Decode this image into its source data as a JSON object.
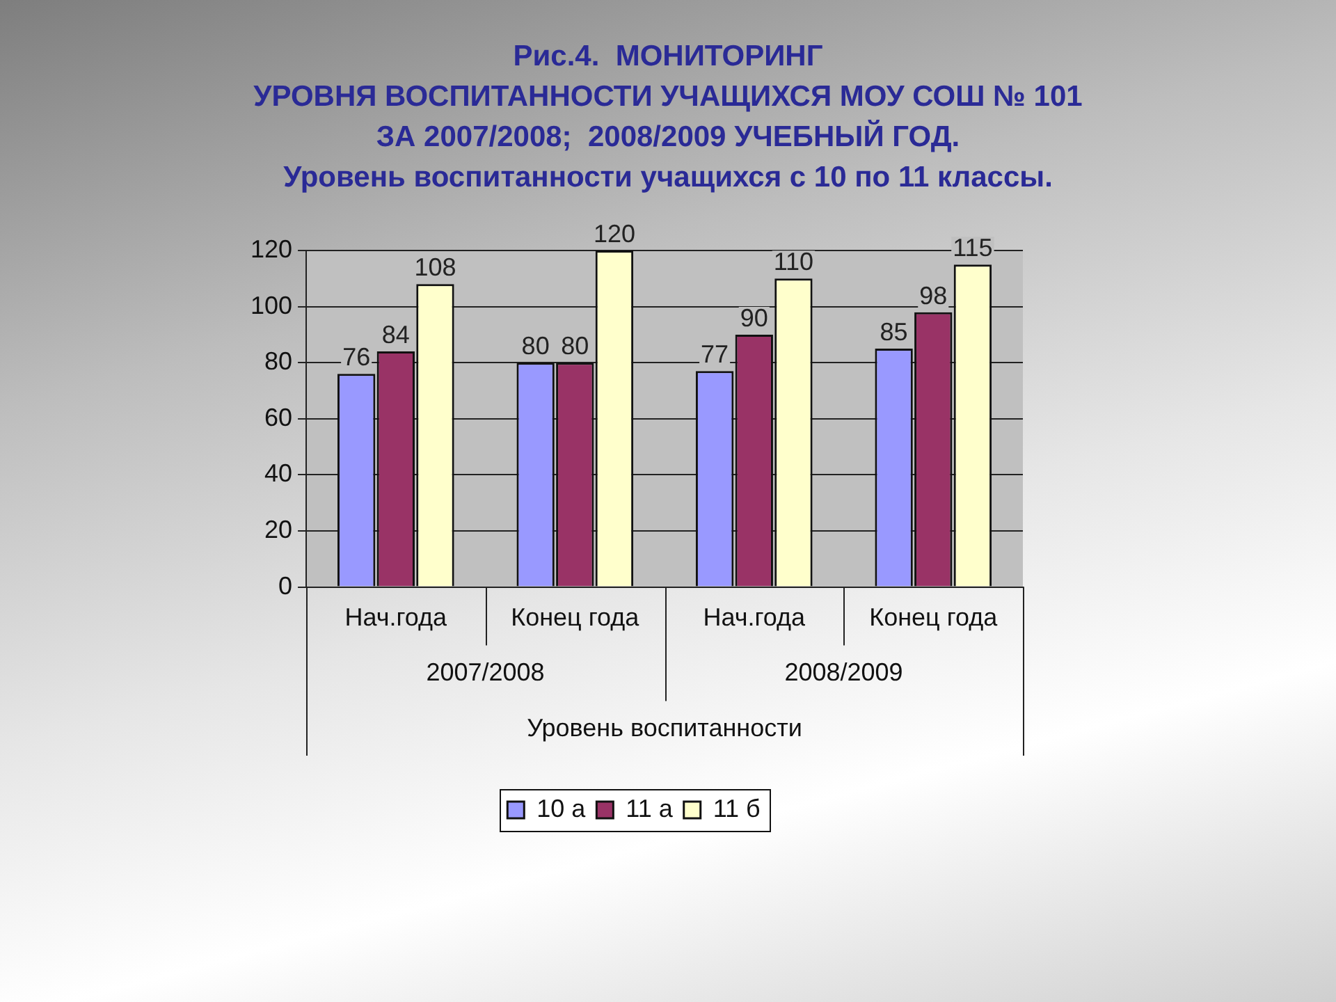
{
  "chart_data": {
    "type": "bar",
    "title": "Рис.4.  МОНИТОРИНГ\nУРОВНЯ ВОСПИТАННОСТИ УЧАЩИХСЯ МОУ СОШ № 101\nЗА 2007/2008;  2008/2009 УЧЕБНЫЙ ГОД.",
    "subtitle": "Уровень воспитанности учащихся с 10 по 11 классы.",
    "xlabel": "Уровень воспитанности",
    "annotations": [
      "2007/2008",
      "2008/2009"
    ],
    "categories": [
      "Нач.года",
      "Конец года",
      "Нач.года",
      "Конец года"
    ],
    "series": [
      {
        "name": "10 а",
        "color": "#9999ff",
        "values": [
          76,
          80,
          77,
          85
        ]
      },
      {
        "name": "11 а",
        "color": "#993366",
        "values": [
          84,
          80,
          90,
          98
        ]
      },
      {
        "name": "11 б",
        "color": "#ffffcc",
        "values": [
          108,
          120,
          110,
          115
        ]
      }
    ],
    "ylim": [
      0,
      120
    ],
    "yticks": [
      0,
      20,
      40,
      60,
      80,
      100,
      120
    ],
    "grid": "y",
    "legend": "bottom",
    "data_labels": true
  }
}
